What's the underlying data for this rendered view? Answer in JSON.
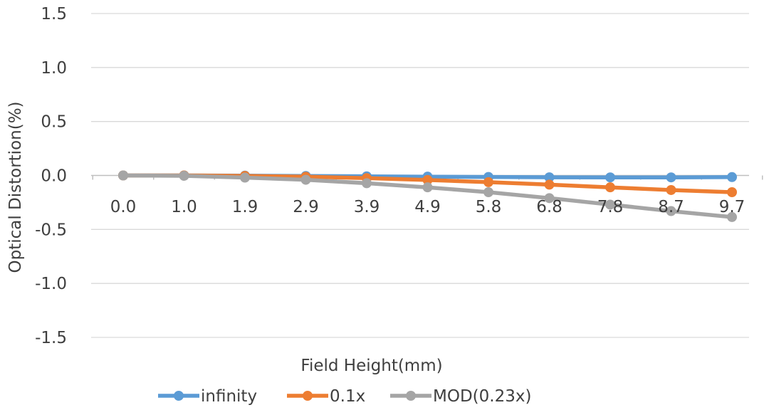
{
  "chart_data": {
    "type": "line",
    "title": "",
    "xlabel": "Field Height(mm)",
    "ylabel": "Optical Distortion(%)",
    "categories": [
      "0.0",
      "1.0",
      "1.9",
      "2.9",
      "3.9",
      "4.9",
      "5.8",
      "6.8",
      "7.8",
      "8.7",
      "9.7"
    ],
    "ylim": [
      -1.5,
      1.5
    ],
    "yticks": [
      "1.5",
      "1.0",
      "0.5",
      "0.0",
      "-0.5",
      "-1.0",
      "-1.5"
    ],
    "ytick_values": [
      1.5,
      1.0,
      0.5,
      0.0,
      -0.5,
      -1.0,
      -1.5
    ],
    "grid": true,
    "legend_position": "bottom",
    "series": [
      {
        "name": "infinity",
        "color": "#5B9BD5",
        "values": [
          0.0,
          0.0,
          -0.002,
          -0.005,
          -0.008,
          -0.011,
          -0.014,
          -0.017,
          -0.018,
          -0.018,
          -0.015
        ]
      },
      {
        "name": "0.1x",
        "color": "#ED7D31",
        "values": [
          0.0,
          0.0,
          -0.004,
          -0.012,
          -0.025,
          -0.042,
          -0.062,
          -0.085,
          -0.11,
          -0.135,
          -0.155
        ]
      },
      {
        "name": "MOD(0.23x)",
        "color": "#A5A5A5",
        "values": [
          0.0,
          -0.003,
          -0.02,
          -0.04,
          -0.072,
          -0.11,
          -0.155,
          -0.21,
          -0.27,
          -0.33,
          -0.385
        ]
      }
    ]
  }
}
